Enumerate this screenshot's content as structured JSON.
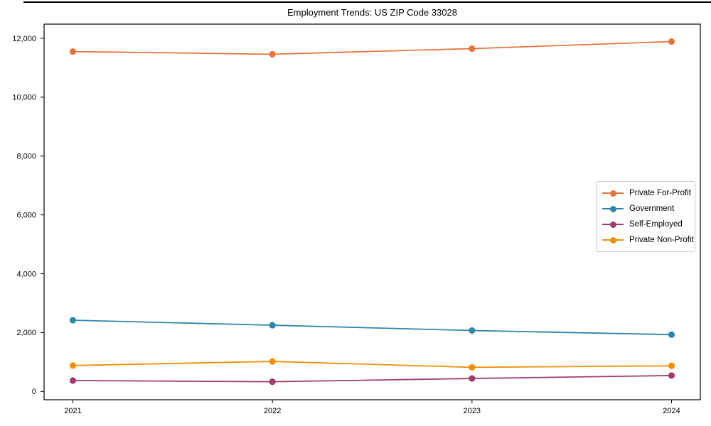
{
  "chart_data": {
    "type": "line",
    "title": "Employment Trends: US ZIP Code 33028",
    "x": [
      2021,
      2022,
      2023,
      2024
    ],
    "x_tick_labels": [
      "2021",
      "2022",
      "2023",
      "2024"
    ],
    "y_ticks": [
      0,
      2000,
      4000,
      6000,
      8000,
      10000,
      12000
    ],
    "y_tick_labels": [
      "0",
      "2,000",
      "4,000",
      "6,000",
      "8,000",
      "10,000",
      "12,000"
    ],
    "series": [
      {
        "name": "Private For-Profit",
        "color": "#E8743B",
        "values": [
          11550,
          11460,
          11650,
          11890
        ]
      },
      {
        "name": "Government",
        "color": "#2E86AB",
        "values": [
          2420,
          2250,
          2070,
          1930
        ]
      },
      {
        "name": "Self-Employed",
        "color": "#A23B72",
        "values": [
          370,
          330,
          440,
          540
        ]
      },
      {
        "name": "Private Non-Profit",
        "color": "#F18F01",
        "values": [
          880,
          1020,
          820,
          870
        ]
      }
    ],
    "ylim": [
      -282,
      12482
    ],
    "xlabel": "",
    "ylabel": "",
    "grid": false,
    "legend_position": "center right"
  }
}
